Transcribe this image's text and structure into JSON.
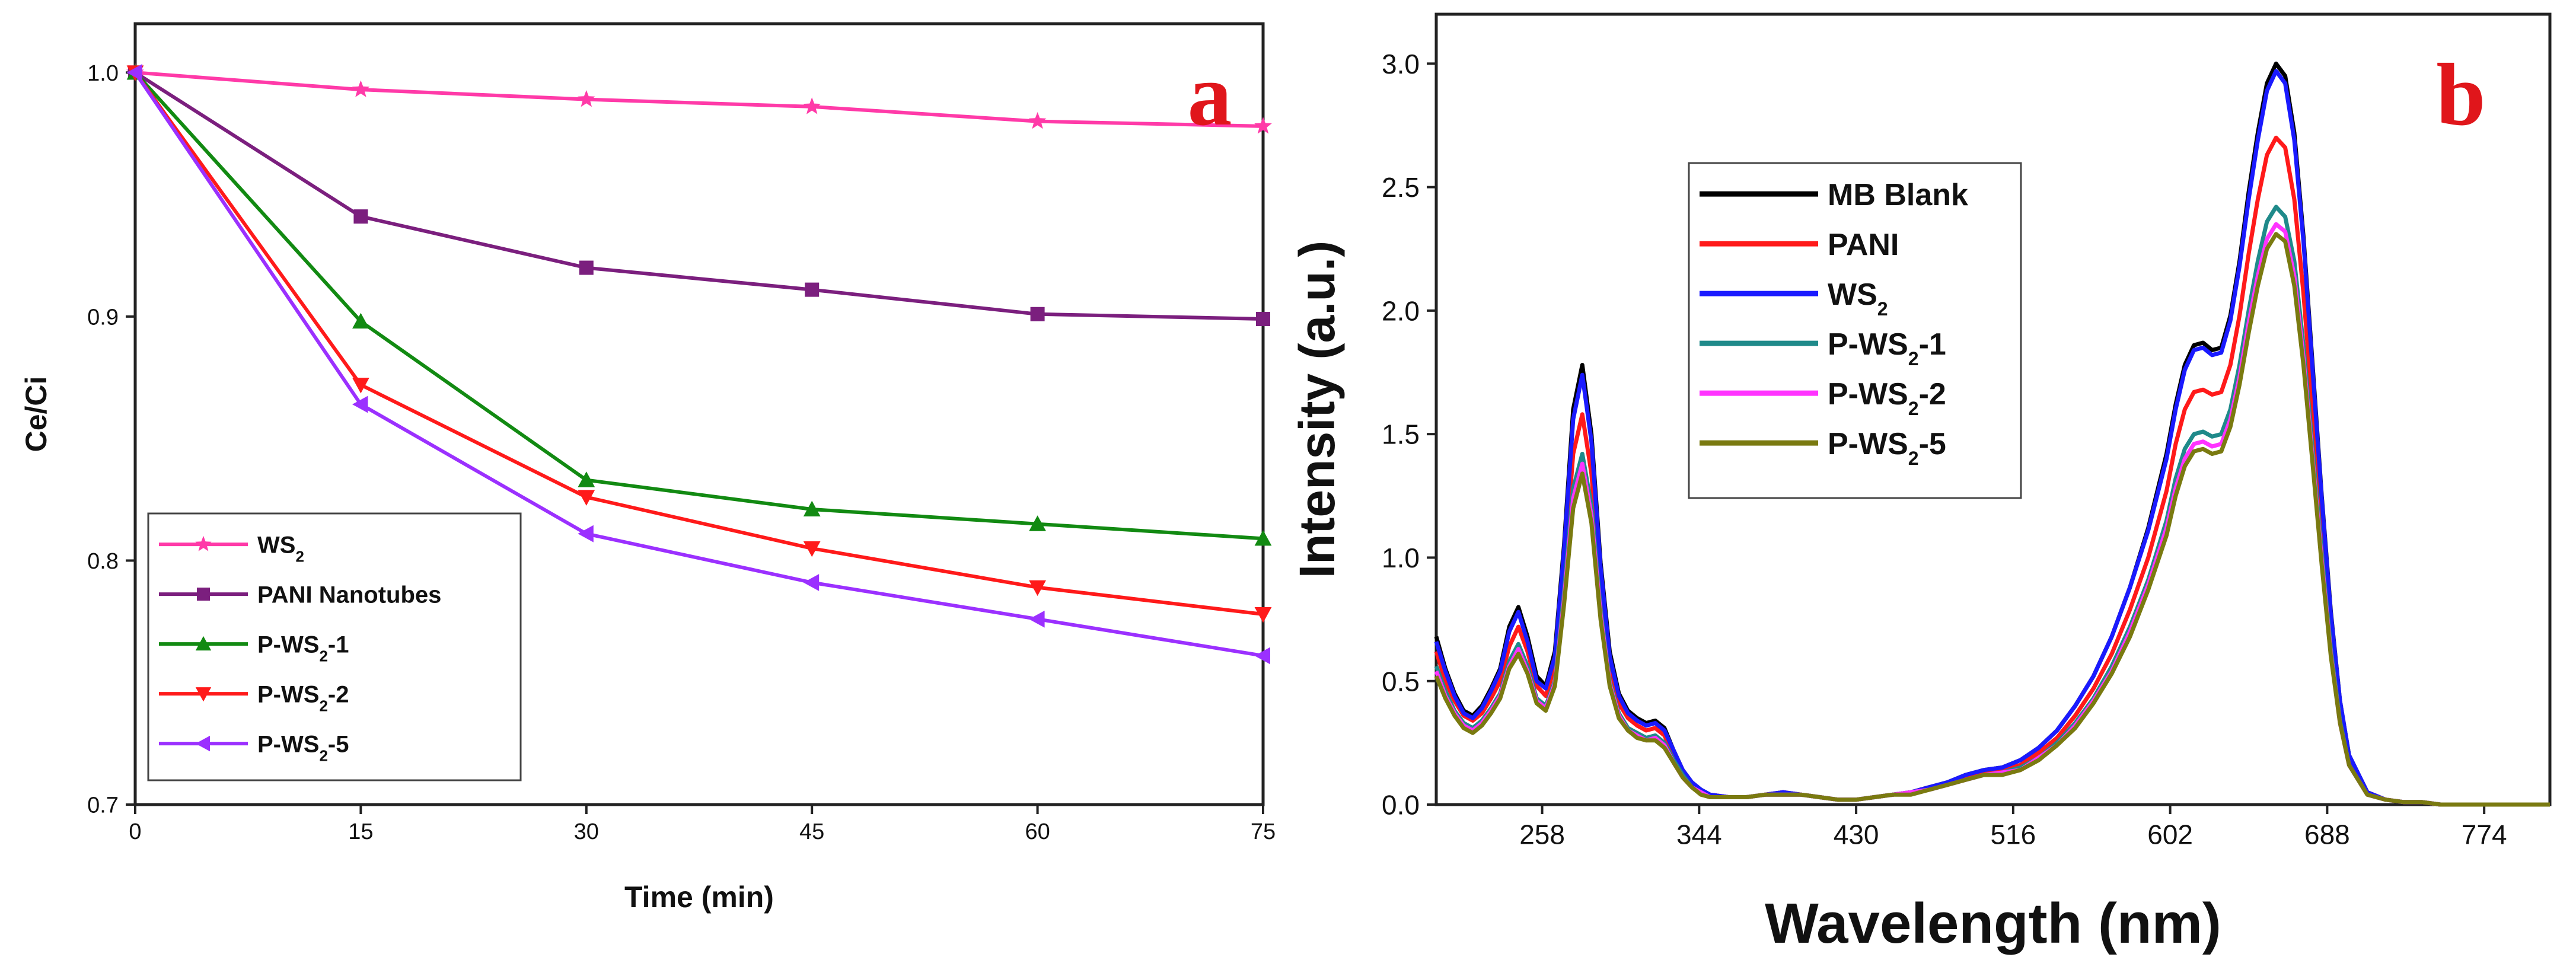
{
  "chart_data": [
    {
      "panel_label": "a",
      "type": "line",
      "xlabel": "Time (min)",
      "ylabel": "Ce/Ci",
      "xlim": [
        0,
        75
      ],
      "ylim": [
        0.7,
        1.02
      ],
      "x_ticks": [
        0,
        15,
        30,
        45,
        60,
        75
      ],
      "x_tick_labels": [
        "0",
        "15",
        "30",
        "45",
        "60",
        "75"
      ],
      "y_ticks": [
        0.7,
        0.8,
        0.9,
        1.0
      ],
      "y_tick_labels": [
        "0.7",
        "0.8",
        "0.9",
        "1.0"
      ],
      "x": [
        0,
        15,
        30,
        45,
        60,
        75
      ],
      "legend_position": "bottom-left",
      "series": [
        {
          "name": "WS",
          "sub": "2",
          "suffix": "",
          "color": "#ff3aa8",
          "marker": "star",
          "values": [
            1.0,
            0.993,
            0.989,
            0.986,
            0.98,
            0.978
          ]
        },
        {
          "name": "PANI Nanotubes",
          "sub": "",
          "suffix": "",
          "color": "#7b1f7e",
          "marker": "square",
          "values": [
            1.0,
            0.941,
            0.92,
            0.911,
            0.901,
            0.899
          ]
        },
        {
          "name": "P-WS",
          "sub": "2",
          "suffix": "-1",
          "color": "#128a12",
          "marker": "triangle-up",
          "values": [
            1.0,
            0.898,
            0.833,
            0.821,
            0.815,
            0.809
          ]
        },
        {
          "name": "P-WS",
          "sub": "2",
          "suffix": "-2",
          "color": "#ff1a1a",
          "marker": "triangle-down",
          "values": [
            1.0,
            0.872,
            0.826,
            0.805,
            0.789,
            0.778
          ]
        },
        {
          "name": "P-WS",
          "sub": "2",
          "suffix": "-5",
          "color": "#9b30ff",
          "marker": "triangle-left",
          "values": [
            1.0,
            0.864,
            0.811,
            0.791,
            0.776,
            0.761
          ]
        }
      ]
    },
    {
      "panel_label": "b",
      "type": "line",
      "xlabel": "Wavelength (nm)",
      "ylabel": "Intensity (a.u.)",
      "xlim": [
        200,
        810
      ],
      "ylim": [
        0,
        3.2
      ],
      "x_ticks": [
        258,
        344,
        430,
        516,
        602,
        688,
        774
      ],
      "x_tick_labels": [
        "258",
        "344",
        "430",
        "516",
        "602",
        "688",
        "774"
      ],
      "y_ticks": [
        0.0,
        0.5,
        1.0,
        1.5,
        2.0,
        2.5,
        3.0
      ],
      "y_tick_labels": [
        "0.0",
        "0.5",
        "1.0",
        "1.5",
        "2.0",
        "2.5",
        "3.0"
      ],
      "x": [
        200,
        205,
        210,
        215,
        220,
        225,
        230,
        235,
        240,
        245,
        250,
        255,
        260,
        265,
        270,
        275,
        280,
        285,
        290,
        295,
        300,
        305,
        310,
        315,
        320,
        325,
        330,
        335,
        340,
        345,
        350,
        360,
        370,
        380,
        390,
        400,
        410,
        420,
        430,
        440,
        450,
        460,
        470,
        480,
        490,
        500,
        510,
        520,
        530,
        540,
        550,
        560,
        570,
        580,
        590,
        600,
        605,
        610,
        615,
        620,
        625,
        630,
        635,
        640,
        645,
        650,
        655,
        660,
        665,
        670,
        675,
        680,
        685,
        690,
        695,
        700,
        710,
        720,
        730,
        740,
        750,
        760,
        770,
        780,
        790,
        800,
        810
      ],
      "legend_position": "top-left",
      "series": [
        {
          "name": "MB Blank",
          "sub": "",
          "suffix": "",
          "color": "#000000",
          "values": [
            0.68,
            0.55,
            0.45,
            0.38,
            0.36,
            0.4,
            0.47,
            0.55,
            0.72,
            0.8,
            0.68,
            0.52,
            0.48,
            0.62,
            1.05,
            1.6,
            1.78,
            1.5,
            0.98,
            0.62,
            0.45,
            0.38,
            0.35,
            0.33,
            0.34,
            0.31,
            0.22,
            0.14,
            0.09,
            0.06,
            0.04,
            0.03,
            0.03,
            0.04,
            0.05,
            0.04,
            0.03,
            0.02,
            0.02,
            0.03,
            0.04,
            0.05,
            0.07,
            0.09,
            0.12,
            0.14,
            0.15,
            0.18,
            0.23,
            0.3,
            0.4,
            0.52,
            0.68,
            0.88,
            1.12,
            1.42,
            1.62,
            1.78,
            1.86,
            1.87,
            1.84,
            1.85,
            1.98,
            2.2,
            2.48,
            2.72,
            2.92,
            3.0,
            2.95,
            2.72,
            2.3,
            1.78,
            1.25,
            0.78,
            0.42,
            0.2,
            0.05,
            0.02,
            0.01,
            0.01,
            0.0,
            0.0,
            0.0,
            0.0,
            0.0,
            0.0,
            0.0
          ]
        },
        {
          "name": "PANI",
          "sub": "",
          "suffix": "",
          "color": "#ff1a1a",
          "values": [
            0.62,
            0.5,
            0.42,
            0.36,
            0.34,
            0.37,
            0.43,
            0.5,
            0.64,
            0.72,
            0.62,
            0.48,
            0.44,
            0.56,
            0.95,
            1.42,
            1.58,
            1.34,
            0.88,
            0.56,
            0.41,
            0.35,
            0.32,
            0.3,
            0.31,
            0.28,
            0.2,
            0.13,
            0.08,
            0.05,
            0.04,
            0.03,
            0.03,
            0.04,
            0.05,
            0.04,
            0.03,
            0.02,
            0.02,
            0.03,
            0.04,
            0.05,
            0.07,
            0.08,
            0.11,
            0.13,
            0.14,
            0.16,
            0.21,
            0.27,
            0.36,
            0.47,
            0.61,
            0.79,
            1.0,
            1.27,
            1.46,
            1.6,
            1.67,
            1.68,
            1.66,
            1.67,
            1.78,
            1.98,
            2.23,
            2.45,
            2.63,
            2.7,
            2.66,
            2.45,
            2.07,
            1.6,
            1.13,
            0.7,
            0.38,
            0.18,
            0.05,
            0.02,
            0.01,
            0.01,
            0.0,
            0.0,
            0.0,
            0.0,
            0.0,
            0.0,
            0.0
          ]
        },
        {
          "name": "WS",
          "sub": "2",
          "suffix": "",
          "color": "#1a1aff",
          "values": [
            0.66,
            0.54,
            0.44,
            0.37,
            0.35,
            0.39,
            0.46,
            0.54,
            0.7,
            0.78,
            0.66,
            0.5,
            0.47,
            0.6,
            1.03,
            1.56,
            1.74,
            1.47,
            0.96,
            0.6,
            0.44,
            0.37,
            0.34,
            0.32,
            0.33,
            0.3,
            0.22,
            0.14,
            0.09,
            0.06,
            0.04,
            0.03,
            0.03,
            0.04,
            0.05,
            0.04,
            0.03,
            0.02,
            0.02,
            0.03,
            0.04,
            0.05,
            0.07,
            0.09,
            0.12,
            0.14,
            0.15,
            0.18,
            0.23,
            0.3,
            0.4,
            0.52,
            0.68,
            0.88,
            1.11,
            1.4,
            1.6,
            1.76,
            1.84,
            1.85,
            1.82,
            1.83,
            1.96,
            2.18,
            2.45,
            2.69,
            2.89,
            2.97,
            2.92,
            2.69,
            2.28,
            1.76,
            1.24,
            0.77,
            0.42,
            0.2,
            0.05,
            0.02,
            0.01,
            0.01,
            0.0,
            0.0,
            0.0,
            0.0,
            0.0,
            0.0,
            0.0
          ]
        },
        {
          "name": "P-WS",
          "sub": "2",
          "suffix": "-1",
          "color": "#1f8a8a",
          "values": [
            0.56,
            0.46,
            0.38,
            0.33,
            0.31,
            0.34,
            0.39,
            0.45,
            0.58,
            0.65,
            0.56,
            0.43,
            0.4,
            0.5,
            0.86,
            1.28,
            1.42,
            1.21,
            0.79,
            0.5,
            0.37,
            0.31,
            0.29,
            0.27,
            0.28,
            0.25,
            0.18,
            0.12,
            0.07,
            0.05,
            0.03,
            0.03,
            0.03,
            0.04,
            0.04,
            0.04,
            0.03,
            0.02,
            0.02,
            0.03,
            0.04,
            0.05,
            0.06,
            0.08,
            0.1,
            0.12,
            0.13,
            0.15,
            0.19,
            0.25,
            0.33,
            0.43,
            0.56,
            0.72,
            0.91,
            1.15,
            1.32,
            1.44,
            1.5,
            1.51,
            1.49,
            1.5,
            1.6,
            1.78,
            2.0,
            2.2,
            2.36,
            2.42,
            2.38,
            2.2,
            1.86,
            1.44,
            1.02,
            0.63,
            0.34,
            0.16,
            0.04,
            0.02,
            0.01,
            0.01,
            0.0,
            0.0,
            0.0,
            0.0,
            0.0,
            0.0,
            0.0
          ]
        },
        {
          "name": "P-WS",
          "sub": "2",
          "suffix": "-2",
          "color": "#ff33ff",
          "values": [
            0.54,
            0.44,
            0.37,
            0.32,
            0.3,
            0.33,
            0.38,
            0.44,
            0.56,
            0.63,
            0.54,
            0.42,
            0.39,
            0.49,
            0.83,
            1.24,
            1.38,
            1.17,
            0.77,
            0.49,
            0.36,
            0.3,
            0.28,
            0.26,
            0.27,
            0.24,
            0.17,
            0.11,
            0.07,
            0.05,
            0.03,
            0.03,
            0.03,
            0.04,
            0.04,
            0.04,
            0.03,
            0.02,
            0.02,
            0.03,
            0.04,
            0.05,
            0.06,
            0.08,
            0.1,
            0.12,
            0.13,
            0.14,
            0.19,
            0.24,
            0.32,
            0.42,
            0.54,
            0.7,
            0.89,
            1.12,
            1.28,
            1.4,
            1.46,
            1.47,
            1.45,
            1.46,
            1.56,
            1.73,
            1.95,
            2.14,
            2.29,
            2.35,
            2.32,
            2.14,
            1.81,
            1.4,
            0.99,
            0.61,
            0.33,
            0.16,
            0.04,
            0.02,
            0.01,
            0.01,
            0.0,
            0.0,
            0.0,
            0.0,
            0.0,
            0.0,
            0.0
          ]
        },
        {
          "name": "P-WS",
          "sub": "2",
          "suffix": "-5",
          "color": "#7a7a10",
          "values": [
            0.52,
            0.43,
            0.36,
            0.31,
            0.29,
            0.32,
            0.37,
            0.43,
            0.55,
            0.61,
            0.53,
            0.41,
            0.38,
            0.48,
            0.81,
            1.2,
            1.34,
            1.14,
            0.75,
            0.48,
            0.35,
            0.3,
            0.27,
            0.26,
            0.26,
            0.23,
            0.17,
            0.11,
            0.07,
            0.04,
            0.03,
            0.03,
            0.03,
            0.04,
            0.04,
            0.04,
            0.03,
            0.02,
            0.02,
            0.03,
            0.04,
            0.04,
            0.06,
            0.08,
            0.1,
            0.12,
            0.12,
            0.14,
            0.18,
            0.24,
            0.31,
            0.41,
            0.53,
            0.68,
            0.87,
            1.09,
            1.25,
            1.37,
            1.43,
            1.44,
            1.42,
            1.43,
            1.53,
            1.7,
            1.91,
            2.1,
            2.25,
            2.31,
            2.28,
            2.1,
            1.78,
            1.38,
            0.97,
            0.6,
            0.33,
            0.16,
            0.04,
            0.02,
            0.01,
            0.01,
            0.0,
            0.0,
            0.0,
            0.0,
            0.0,
            0.0,
            0.0
          ]
        }
      ]
    }
  ]
}
